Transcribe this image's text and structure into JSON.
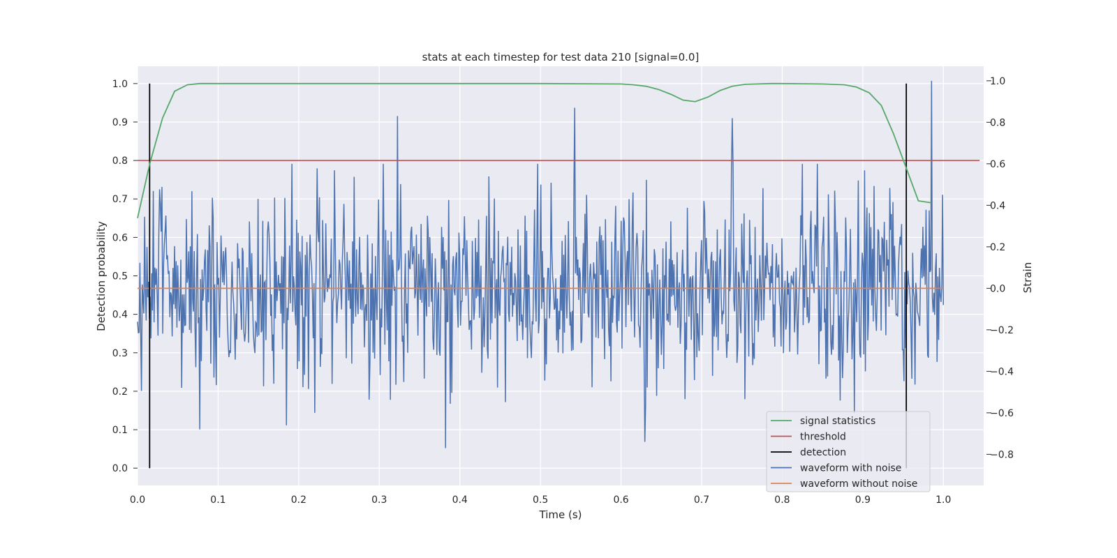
{
  "chart_data": {
    "type": "line",
    "title": "stats at each timestep for test data 210 [signal=0.0]",
    "xlabel": "Time (s)",
    "ylabel": "Detection probability",
    "y2label": "Strain",
    "xlim": [
      0.0,
      1.05
    ],
    "ylim": [
      -0.045,
      1.045
    ],
    "y2lim": [
      -0.95,
      1.07
    ],
    "xticks": [
      "0.0",
      "0.1",
      "0.2",
      "0.3",
      "0.4",
      "0.5",
      "0.6",
      "0.7",
      "0.8",
      "0.9",
      "1.0"
    ],
    "yticks": [
      "0.0",
      "0.1",
      "0.2",
      "0.3",
      "0.4",
      "0.5",
      "0.6",
      "0.7",
      "0.8",
      "0.9",
      "1.0"
    ],
    "y2ticks": [
      "−0.8",
      "−0.6",
      "−0.4",
      "−0.2",
      "0.0",
      "0.2",
      "0.4",
      "0.6",
      "0.8",
      "1.0"
    ],
    "grid": true,
    "legend_position": "lower-right",
    "series": [
      {
        "name": "signal statistics",
        "color": "#55a868",
        "axis": "left",
        "x": [
          0.0,
          0.015,
          0.031,
          0.046,
          0.062,
          0.077,
          0.1,
          0.2,
          0.3,
          0.4,
          0.5,
          0.6,
          0.615,
          0.631,
          0.646,
          0.662,
          0.677,
          0.692,
          0.708,
          0.723,
          0.738,
          0.754,
          0.769,
          0.785,
          0.8,
          0.85,
          0.877,
          0.892,
          0.908,
          0.923,
          0.938,
          0.954,
          0.969,
          0.985
        ],
        "values": [
          0.65,
          0.79,
          0.91,
          0.98,
          0.997,
          1.0,
          1.0,
          1.0,
          1.0,
          1.0,
          1.0,
          0.999,
          0.997,
          0.993,
          0.985,
          0.972,
          0.957,
          0.953,
          0.965,
          0.982,
          0.993,
          0.998,
          0.999,
          1.0,
          1.0,
          0.999,
          0.997,
          0.991,
          0.976,
          0.943,
          0.87,
          0.78,
          0.695,
          0.69
        ]
      },
      {
        "name": "threshold",
        "color": "#c44e52",
        "axis": "left",
        "x": [
          0.0,
          1.045
        ],
        "values": [
          0.8,
          0.8
        ]
      },
      {
        "name": "detection",
        "color": "#000000",
        "axis": "left",
        "segments": [
          {
            "x": 0.015,
            "y0": 0.0,
            "y1": 1.0
          },
          {
            "x": 0.954,
            "y0": 0.0,
            "y1": 1.0
          }
        ]
      },
      {
        "name": "waveform with noise",
        "color": "#4c72b0",
        "axis": "right",
        "noise": {
          "count": 1024,
          "std": 0.23,
          "spikes": [
            [
              0.323,
              0.83
            ],
            [
              0.543,
              0.87
            ],
            [
              0.738,
              0.82
            ],
            [
              0.985,
              1.0
            ],
            [
              0.382,
              -0.77
            ],
            [
              0.63,
              -0.74
            ],
            [
              0.185,
              -0.66
            ],
            [
              0.077,
              -0.68
            ]
          ]
        }
      },
      {
        "name": "waveform without noise",
        "color": "#dd8452",
        "axis": "right",
        "x": [
          0.0,
          1.0
        ],
        "values": [
          0.0,
          0.0
        ]
      }
    ]
  }
}
